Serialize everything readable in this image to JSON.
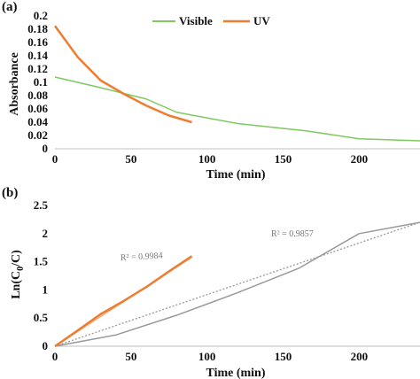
{
  "chart_data": [
    {
      "panel_label": "(a)",
      "type": "line",
      "xlabel": "Time (min)",
      "ylabel": "Absorbance",
      "xlim": [
        0,
        240
      ],
      "ylim": [
        0,
        0.2
      ],
      "xticks": [
        "0",
        "50",
        "100",
        "150",
        "200"
      ],
      "xtick_values": [
        0,
        50,
        100,
        150,
        200
      ],
      "yticks": [
        "0",
        "0.02",
        "0.04",
        "0.06",
        "0.08",
        "0.1",
        "0.12",
        "0.14",
        "0.16",
        "0.18",
        "0.2"
      ],
      "ytick_values": [
        0,
        0.02,
        0.04,
        0.06,
        0.08,
        0.1,
        0.12,
        0.14,
        0.16,
        0.18,
        0.2
      ],
      "legend_position": "top",
      "series": [
        {
          "name": "Visible",
          "color": "#7dc95e",
          "x": [
            0,
            30,
            60,
            80,
            120,
            165,
            200,
            240
          ],
          "y": [
            0.108,
            0.092,
            0.075,
            0.055,
            0.038,
            0.027,
            0.015,
            0.012
          ]
        },
        {
          "name": "UV",
          "color": "#ed7d31",
          "x": [
            0,
            15,
            30,
            45,
            60,
            75,
            90
          ],
          "y": [
            0.185,
            0.138,
            0.103,
            0.083,
            0.065,
            0.05,
            0.04
          ]
        }
      ]
    },
    {
      "panel_label": "(b)",
      "type": "line",
      "xlabel": "Time (min)",
      "ylabel": "Ln(C0/C)",
      "ylabel_main": "Ln(C",
      "ylabel_sub": "0",
      "ylabel_end": "/C)",
      "xlim": [
        0,
        240
      ],
      "ylim": [
        0,
        2.5
      ],
      "xticks": [
        "0",
        "50",
        "100",
        "150",
        "200"
      ],
      "xtick_values": [
        0,
        50,
        100,
        150,
        200
      ],
      "yticks": [
        "0",
        "0.5",
        "1",
        "1.5",
        "2",
        "2.5"
      ],
      "ytick_values": [
        0,
        0.5,
        1,
        1.5,
        2,
        2.5
      ],
      "annotations": [
        "R² = 0.9984",
        "R² = 0.9857"
      ],
      "series": [
        {
          "color": "#999999",
          "x": [
            0,
            40,
            80,
            120,
            160,
            200,
            240
          ],
          "y": [
            0,
            0.2,
            0.55,
            0.95,
            1.38,
            2.0,
            2.2
          ]
        },
        {
          "color": "#ed7d31",
          "x": [
            0,
            15,
            30,
            45,
            60,
            75,
            90
          ],
          "y": [
            0,
            0.28,
            0.57,
            0.8,
            1.05,
            1.33,
            1.6
          ]
        }
      ],
      "trendlines": [
        {
          "color": "#999999",
          "style": "dotted",
          "x": [
            0,
            240
          ],
          "y": [
            0,
            2.2
          ]
        },
        {
          "color": "#f4b183",
          "style": "solid",
          "x": [
            0,
            90
          ],
          "y": [
            0,
            1.58
          ]
        }
      ]
    }
  ]
}
